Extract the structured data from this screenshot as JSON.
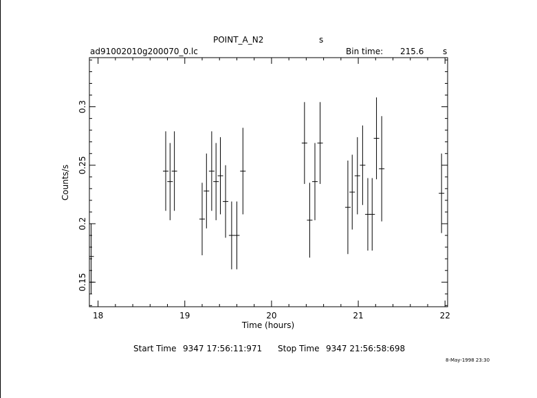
{
  "header": {
    "object": "POINT_A_N2",
    "object_unit": "s",
    "file": "ad91002010g200070_0.lc",
    "bin_label": "Bin time:",
    "bin_value": "215.6",
    "bin_unit": "s"
  },
  "footer": {
    "start_label": "Start Time",
    "start_value": "9347  17:56:11:971",
    "stop_label": "Stop Time",
    "stop_value": "9347  21:56:58:698",
    "stamp": "8-May-1998 23:30"
  },
  "chart_data": {
    "type": "scatter",
    "xlabel": "Time (hours)",
    "ylabel": "Counts/s",
    "xlim": [
      17.9,
      22.03
    ],
    "ylim": [
      0.129,
      0.342
    ],
    "x_ticks": [
      18,
      19,
      20,
      21,
      22
    ],
    "x_tick_labels": [
      "18",
      "19",
      "20",
      "21",
      "22"
    ],
    "y_ticks": [
      0.15,
      0.2,
      0.25,
      0.3
    ],
    "y_tick_labels": [
      "0.15",
      "0.2",
      "0.25",
      "0.3"
    ],
    "grid": false,
    "points": [
      {
        "x": 17.92,
        "y": 0.172,
        "yerr": 0.028
      },
      {
        "x": 17.92,
        "y": 0.15,
        "yerr": 0.01
      },
      {
        "x": 18.78,
        "y": 0.245,
        "yerr": 0.034
      },
      {
        "x": 18.83,
        "y": 0.236,
        "yerr": 0.033
      },
      {
        "x": 18.88,
        "y": 0.245,
        "yerr": 0.034
      },
      {
        "x": 19.2,
        "y": 0.204,
        "yerr": 0.031
      },
      {
        "x": 19.25,
        "y": 0.228,
        "yerr": 0.032
      },
      {
        "x": 19.31,
        "y": 0.245,
        "yerr": 0.034
      },
      {
        "x": 19.36,
        "y": 0.236,
        "yerr": 0.033
      },
      {
        "x": 19.41,
        "y": 0.241,
        "yerr": 0.033
      },
      {
        "x": 19.47,
        "y": 0.219,
        "yerr": 0.031
      },
      {
        "x": 19.54,
        "y": 0.19,
        "yerr": 0.029
      },
      {
        "x": 19.6,
        "y": 0.19,
        "yerr": 0.029
      },
      {
        "x": 19.67,
        "y": 0.245,
        "yerr": 0.037
      },
      {
        "x": 20.38,
        "y": 0.269,
        "yerr": 0.035
      },
      {
        "x": 20.44,
        "y": 0.203,
        "yerr": 0.032
      },
      {
        "x": 20.5,
        "y": 0.236,
        "yerr": 0.033
      },
      {
        "x": 20.56,
        "y": 0.269,
        "yerr": 0.035
      },
      {
        "x": 20.88,
        "y": 0.214,
        "yerr": 0.04
      },
      {
        "x": 20.93,
        "y": 0.227,
        "yerr": 0.032
      },
      {
        "x": 20.99,
        "y": 0.241,
        "yerr": 0.033
      },
      {
        "x": 21.05,
        "y": 0.25,
        "yerr": 0.034
      },
      {
        "x": 21.11,
        "y": 0.208,
        "yerr": 0.031
      },
      {
        "x": 21.16,
        "y": 0.208,
        "yerr": 0.031
      },
      {
        "x": 21.21,
        "y": 0.273,
        "yerr": 0.035
      },
      {
        "x": 21.27,
        "y": 0.247,
        "yerr": 0.045
      },
      {
        "x": 21.96,
        "y": 0.226,
        "yerr": 0.034
      }
    ]
  }
}
